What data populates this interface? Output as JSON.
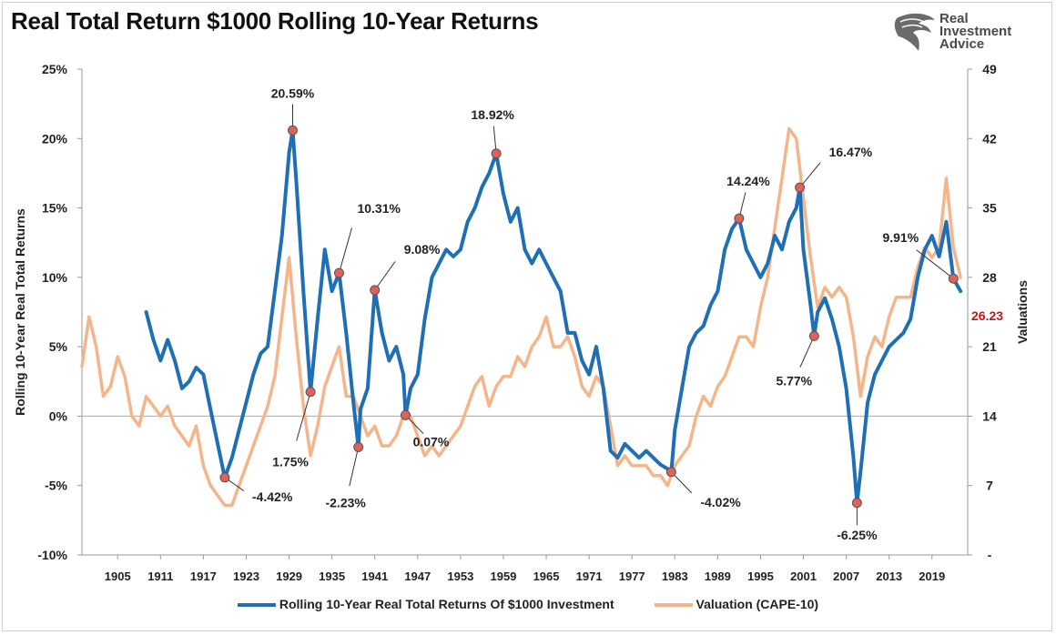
{
  "title": "Real Total Return $1000 Rolling 10-Year Returns",
  "logo": {
    "line1": "Real",
    "line2": "Investment",
    "line3": "Advice"
  },
  "colors": {
    "returns": "#1f6fb4",
    "cape": "#f5b58a",
    "marker": "#e0605a",
    "highlight": "#cc1111"
  },
  "chart_data": {
    "type": "line",
    "title": "Real Total Return $1000 Rolling 10-Year Returns",
    "ylabel": "Rolling 10-Year Real Total Returns",
    "y2label": "Valuations",
    "ylim": [
      -10,
      25
    ],
    "y2lim": [
      0,
      49
    ],
    "xlim": [
      1900,
      2024
    ],
    "yticks": [
      "25%",
      "20%",
      "15%",
      "10%",
      "5%",
      "0%",
      "-5%",
      "-10%"
    ],
    "y2ticks": [
      "49",
      "42",
      "35",
      "28",
      "21",
      "14",
      "7",
      "-"
    ],
    "xticks": [
      "1905",
      "1911",
      "1917",
      "1923",
      "1929",
      "1935",
      "1941",
      "1947",
      "1953",
      "1959",
      "1965",
      "1971",
      "1977",
      "1983",
      "1989",
      "1995",
      "2001",
      "2007",
      "2013",
      "2019"
    ],
    "legend_position": "bottom",
    "series": [
      {
        "name": "Rolling 10-Year Real Total Returns Of $1000 Investment",
        "axis": "left",
        "x": [
          1909,
          1910,
          1911,
          1912,
          1913,
          1914,
          1915,
          1916,
          1917,
          1918,
          1919,
          1920,
          1921,
          1922,
          1923,
          1924,
          1925,
          1926,
          1927,
          1928,
          1929,
          1929.5,
          1930,
          1931,
          1932,
          1933,
          1934,
          1935,
          1936,
          1937,
          1938,
          1938.7,
          1939,
          1940,
          1941,
          1942,
          1943,
          1944,
          1945,
          1945.3,
          1946,
          1947,
          1948,
          1949,
          1950,
          1951,
          1952,
          1953,
          1954,
          1955,
          1956,
          1957,
          1958,
          1959,
          1960,
          1961,
          1962,
          1963,
          1964,
          1965,
          1966,
          1967,
          1968,
          1969,
          1970,
          1971,
          1972,
          1973,
          1974,
          1975,
          1976,
          1977,
          1978,
          1979,
          1980,
          1981,
          1982,
          1982.5,
          1983,
          1984,
          1985,
          1986,
          1987,
          1988,
          1989,
          1990,
          1991,
          1992,
          1993,
          1994,
          1995,
          1996,
          1997,
          1998,
          1999,
          2000,
          2000.5,
          2001,
          2002,
          2002.5,
          2003,
          2004,
          2005,
          2006,
          2007,
          2008,
          2008.5,
          2009,
          2010,
          2011,
          2012,
          2013,
          2014,
          2015,
          2016,
          2017,
          2018,
          2019,
          2020,
          2021,
          2022,
          2023
        ],
        "y": [
          7.5,
          5.5,
          4,
          5.5,
          4,
          2,
          2.5,
          3.5,
          3,
          0.5,
          -2,
          -4.42,
          -3,
          -1,
          1,
          3,
          4.5,
          5,
          9,
          13,
          19,
          20.59,
          17,
          9,
          1.75,
          7,
          12,
          9,
          10.31,
          6,
          1,
          -2.23,
          0.5,
          2,
          9.08,
          6,
          4,
          5,
          3,
          0.07,
          2,
          3,
          7,
          10,
          11,
          12,
          11.5,
          12,
          14,
          15,
          16.5,
          17.5,
          18.92,
          16,
          14,
          15,
          12,
          11,
          12,
          11,
          10,
          9,
          6,
          6,
          4,
          3,
          5,
          2,
          -2.5,
          -3,
          -2,
          -2.5,
          -3,
          -2.5,
          -3,
          -3.5,
          -3.8,
          -4.02,
          -1,
          2,
          5,
          6,
          6.5,
          8,
          9,
          12,
          13.5,
          14.24,
          12,
          11,
          10,
          11,
          13,
          12,
          14,
          15,
          16.47,
          12,
          8,
          5.77,
          7.5,
          8.5,
          7,
          5,
          2,
          -3,
          -6.25,
          -4,
          1,
          3,
          4,
          5,
          5.5,
          6,
          7,
          10,
          12,
          13,
          11.5,
          14,
          9.91,
          9
        ]
      },
      {
        "name": "Valuation (CAPE-10)",
        "axis": "right",
        "x": [
          1900,
          1901,
          1902,
          1903,
          1904,
          1905,
          1906,
          1907,
          1908,
          1909,
          1910,
          1911,
          1912,
          1913,
          1914,
          1915,
          1916,
          1917,
          1918,
          1919,
          1920,
          1921,
          1922,
          1923,
          1924,
          1925,
          1926,
          1927,
          1928,
          1929,
          1930,
          1931,
          1932,
          1933,
          1934,
          1935,
          1936,
          1937,
          1938,
          1939,
          1940,
          1941,
          1942,
          1943,
          1944,
          1945,
          1946,
          1947,
          1948,
          1949,
          1950,
          1951,
          1952,
          1953,
          1954,
          1955,
          1956,
          1957,
          1958,
          1959,
          1960,
          1961,
          1962,
          1963,
          1964,
          1965,
          1966,
          1967,
          1968,
          1969,
          1970,
          1971,
          1972,
          1973,
          1974,
          1975,
          1976,
          1977,
          1978,
          1979,
          1980,
          1981,
          1982,
          1983,
          1984,
          1985,
          1986,
          1987,
          1988,
          1989,
          1990,
          1991,
          1992,
          1993,
          1994,
          1995,
          1996,
          1997,
          1998,
          1999,
          2000,
          2001,
          2002,
          2003,
          2004,
          2005,
          2006,
          2007,
          2008,
          2009,
          2010,
          2011,
          2012,
          2013,
          2014,
          2015,
          2016,
          2017,
          2018,
          2019,
          2020,
          2021,
          2022,
          2023
        ],
        "y": [
          19,
          24,
          21,
          16,
          17,
          20,
          18,
          14,
          13,
          16,
          15,
          14,
          15,
          13,
          12,
          11,
          13,
          9,
          7,
          6,
          5,
          5,
          7,
          9,
          11,
          13,
          15,
          18,
          24,
          30,
          22,
          15,
          10,
          13,
          17,
          19,
          21,
          16,
          16,
          14,
          12,
          13,
          11,
          11,
          12,
          14,
          14,
          12,
          10,
          11,
          10,
          11,
          12,
          13,
          15,
          17,
          18,
          15,
          17,
          18,
          18,
          20,
          19,
          21,
          22,
          24,
          21,
          21,
          22,
          20,
          17,
          16,
          18,
          17,
          13,
          9,
          10,
          9,
          9,
          9,
          8,
          8,
          7,
          9,
          10,
          11,
          14,
          16,
          15,
          17,
          18,
          20,
          22,
          22,
          21,
          25,
          28,
          33,
          38,
          43,
          42,
          36,
          30,
          25,
          27,
          26,
          27,
          26,
          22,
          16,
          20,
          22,
          21,
          24,
          26,
          26,
          26,
          29,
          31,
          30,
          31,
          38,
          31,
          28
        ]
      }
    ],
    "annotations": [
      {
        "label": "20.59%",
        "x": 1929.5,
        "y": 20.59
      },
      {
        "label": "1.75%",
        "x": 1932,
        "y": 1.75
      },
      {
        "label": "10.31%",
        "x": 1936,
        "y": 10.31
      },
      {
        "label": "-4.42%",
        "x": 1920,
        "y": -4.42
      },
      {
        "label": "-2.23%",
        "x": 1938.7,
        "y": -2.23
      },
      {
        "label": "9.08%",
        "x": 1941,
        "y": 9.08
      },
      {
        "label": "0.07%",
        "x": 1945.3,
        "y": 0.07
      },
      {
        "label": "18.92%",
        "x": 1958,
        "y": 18.92
      },
      {
        "label": "-4.02%",
        "x": 1982.5,
        "y": -4.02
      },
      {
        "label": "14.24%",
        "x": 1992,
        "y": 14.24
      },
      {
        "label": "16.47%",
        "x": 2000.5,
        "y": 16.47
      },
      {
        "label": "5.77%",
        "x": 2002.5,
        "y": 5.77
      },
      {
        "label": "-6.25%",
        "x": 2008.5,
        "y": -6.25
      },
      {
        "label": "9.91%",
        "x": 2022,
        "y": 9.91
      }
    ],
    "right_axis_callout": {
      "label": "26.23",
      "value": 26.23
    }
  }
}
